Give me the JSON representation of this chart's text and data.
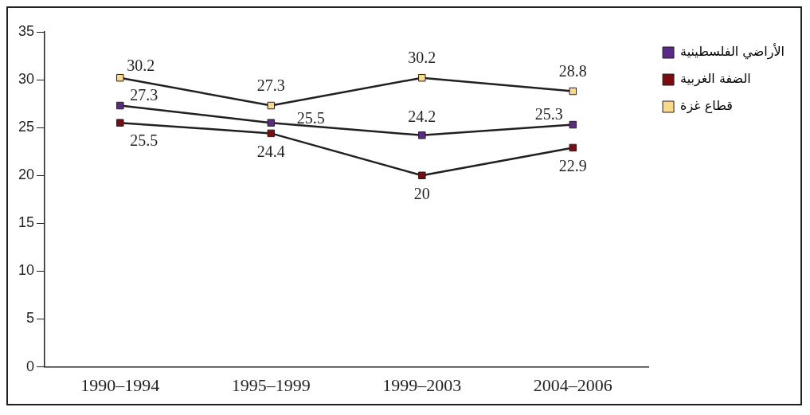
{
  "chart_data": {
    "type": "line",
    "categories": [
      "1990–1994",
      "1995–1999",
      "1999–2003",
      "2004–2006"
    ],
    "series": [
      {
        "name": "الأراضي الفلسطينية",
        "color": "#5b2a86",
        "values": [
          27.3,
          25.5,
          24.2,
          25.3
        ]
      },
      {
        "name": "الضفة الغربية",
        "color": "#7a0c0f",
        "values": [
          25.5,
          24.4,
          20,
          22.9
        ]
      },
      {
        "name": "قطاع غزة",
        "color": "#fbd98a",
        "values": [
          30.2,
          27.3,
          30.2,
          28.8
        ]
      }
    ],
    "ylim": [
      0,
      35
    ],
    "yticks": [
      0,
      5,
      10,
      15,
      20,
      25,
      30,
      35
    ],
    "grid": false,
    "legend": "top right",
    "marker": "square",
    "line_style": "solid",
    "data_labels": true
  }
}
